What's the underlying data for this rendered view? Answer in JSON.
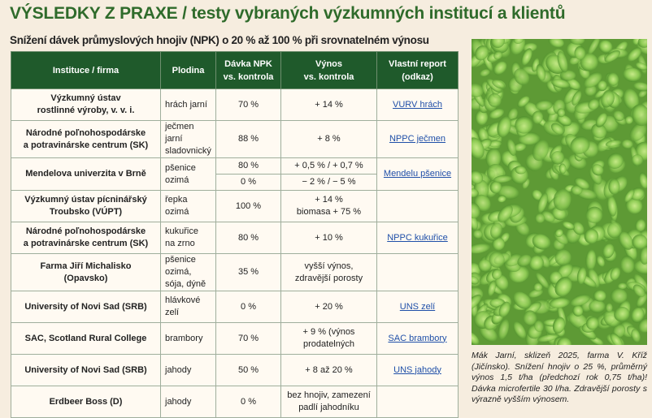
{
  "title": "VÝSLEDKY Z PRAXE / testy vybraných výzkumných institucí a klientů",
  "subtitle": "Snížení dávek průmyslových hnojiv (NPK) o 20 % až 100 % při srovnatelném výnosu",
  "table": {
    "header": [
      "Instituce / firma",
      "Plodina",
      "Dávka NPK\nvs. kontrola",
      "Výnos\nvs. kontrola",
      "Vlastní report\n(odkaz)"
    ],
    "rows": [
      [
        "Výzkumný ústav\nrostlinné výroby, v. v. i.",
        "hrách jarní",
        "70 %",
        "+ 14 %",
        "VURV hrách"
      ],
      [
        "Národné poľnohospodárske\na potravinárske centrum (SK)",
        "ječmen jarní\nsladovnický",
        "88 %",
        "+ 8 %",
        "NPPC ječmen"
      ],
      [
        "Mendelova univerzita v Brně",
        "pšenice ozimá",
        [
          "80 %",
          "0 %"
        ],
        [
          "+ 0,5 % / + 0,7 %",
          "− 2 % / − 5 %"
        ],
        "Mendelu pšenice"
      ],
      [
        "Výzkumný ústav pícninářský\nTroubsko (VÚPT)",
        "řepka ozimá",
        "100 %",
        "+ 14 %\nbiomasa + 75 %",
        null
      ],
      [
        "Národné poľnohospodárske\na potravinárske centrum (SK)",
        "kukuřice\nna zrno",
        "80 %",
        "+ 10 %",
        "NPPC kukuřice"
      ],
      [
        "Farma Jiří Michalisko\n(Opavsko)",
        "pšenice ozimá,\nsója, dýně",
        "35 %",
        "vyšší výnos,\nzdravější porosty",
        null
      ],
      [
        "University of Novi Sad (SRB)",
        "hlávkové zelí",
        "0 %",
        "+ 20 %",
        "UNS zelí"
      ],
      [
        "SAC, Scotland Rural College",
        "brambory",
        "70 %",
        "+ 9 % (výnos\nprodatelných",
        "SAC brambory"
      ],
      [
        "University of Novi Sad (SRB)",
        "jahody",
        "50 %",
        "+ 8 až 20 %",
        "UNS jahody"
      ],
      [
        "Erdbeer Boss (D)",
        "jahody",
        "0 %",
        "bez hnojiv, zamezení\npadlí jahodníku",
        null
      ]
    ]
  },
  "caption": "Mák Jarní, sklizeň 2025, farma V. Kříž (Jičínsko). Snížení hnojiv o 25 %, průměrný výnos 1,5 t/ha (předchozí rok 0,75 t/ha)! Dávka microfertile 30 l/ha. Zdravější porosty s výrazně vyšším výnosem."
}
